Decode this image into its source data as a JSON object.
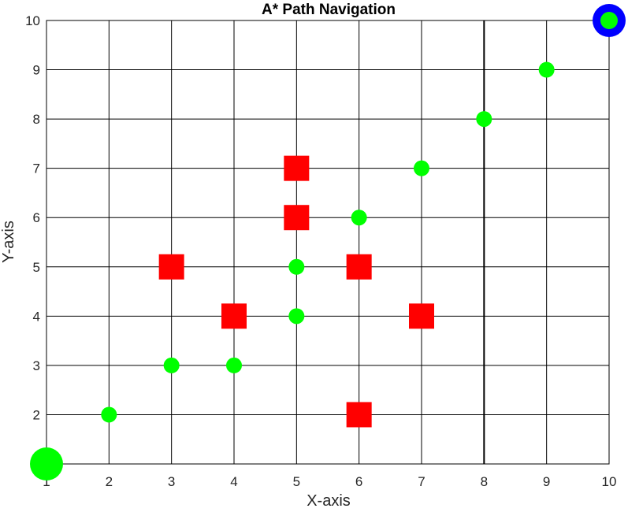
{
  "chart_data": {
    "type": "scatter",
    "title": "A* Path Navigation",
    "xlabel": "X-axis",
    "ylabel": "Y-axis",
    "xlim": [
      1,
      10
    ],
    "ylim": [
      1,
      10
    ],
    "xticks": [
      "1",
      "2",
      "3",
      "4",
      "5",
      "6",
      "7",
      "8",
      "9",
      "10"
    ],
    "yticks": [
      "2",
      "3",
      "4",
      "5",
      "6",
      "7",
      "8",
      "9",
      "10"
    ],
    "grid": true,
    "colors": {
      "path": "#00ff00",
      "obstacle": "#ff0000",
      "goal_ring": "#0000ff",
      "grid": "#000000"
    },
    "series": [
      {
        "role": "path",
        "marker": "circle",
        "points": [
          [
            2,
            2
          ],
          [
            3,
            3
          ],
          [
            4,
            3
          ],
          [
            5,
            4
          ],
          [
            5,
            5
          ],
          [
            6,
            6
          ],
          [
            7,
            7
          ],
          [
            8,
            8
          ],
          [
            9,
            9
          ]
        ]
      },
      {
        "role": "obstacle",
        "marker": "square",
        "points": [
          [
            5,
            7
          ],
          [
            5,
            6
          ],
          [
            3,
            5
          ],
          [
            6,
            5
          ],
          [
            4,
            4
          ],
          [
            7,
            4
          ],
          [
            6,
            2
          ]
        ]
      },
      {
        "role": "start",
        "marker": "circle-large",
        "points": [
          [
            1,
            1
          ]
        ]
      },
      {
        "role": "goal",
        "marker": "ring",
        "points": [
          [
            10,
            10
          ]
        ]
      }
    ],
    "emphasized_gridline_x": 8
  }
}
